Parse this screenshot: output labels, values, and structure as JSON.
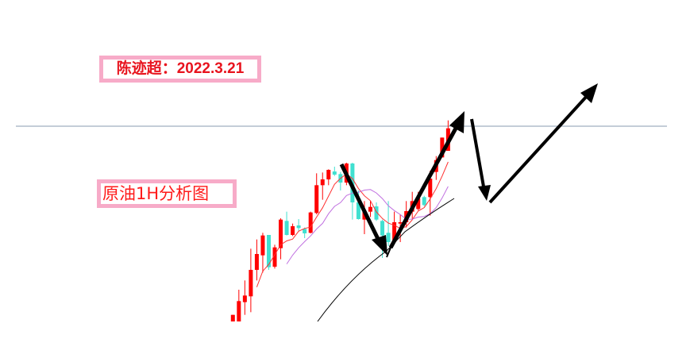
{
  "title_label": "陈迹超：2022.3.21",
  "subtitle_label": "原油1H分析图",
  "chart_data": {
    "type": "candlestick",
    "title": "",
    "xlabel": "",
    "ylabel": "",
    "grid": false,
    "colors": {
      "up": "#ff0000",
      "down": "#40e0d0",
      "ma_fast": "#ff3030",
      "ma_slow": "#c070e0",
      "trend_curve": "#000000",
      "horizontal_line": "#8a9bb0",
      "arrows": "#000000"
    },
    "moving_averages": [
      5,
      10
    ],
    "candles": [
      [
        0.5,
        3,
        0.5,
        3
      ],
      [
        0.5,
        12.5,
        0.5,
        8.2
      ],
      [
        7.8,
        16,
        3,
        10.3
      ],
      [
        10,
        28,
        4,
        20
      ],
      [
        20,
        31.5,
        16,
        26
      ],
      [
        25.5,
        34,
        19,
        33
      ],
      [
        33.2,
        33.2,
        20,
        21
      ],
      [
        21.2,
        29.5,
        20.5,
        28.5
      ],
      [
        28.2,
        39.5,
        24,
        39
      ],
      [
        38.5,
        42,
        33,
        33.2
      ],
      [
        33.2,
        37.5,
        32.8,
        36.5
      ],
      [
        36.8,
        39.2,
        34.5,
        35.8
      ],
      [
        35.5,
        36,
        32,
        33.8
      ],
      [
        34,
        42,
        33.8,
        41.7
      ],
      [
        41.5,
        56.5,
        41,
        52
      ],
      [
        52,
        56.8,
        46.5,
        54.2
      ],
      [
        54.2,
        58,
        52,
        57.8
      ],
      [
        57.2,
        59,
        55.5,
        56
      ],
      [
        56.2,
        57,
        50,
        53
      ],
      [
        53,
        60.5,
        52,
        60.2
      ],
      [
        60.2,
        60.5,
        39,
        45.5
      ],
      [
        45.5,
        50,
        39,
        39.2
      ],
      [
        39,
        46,
        33.5,
        42
      ],
      [
        42,
        46,
        40,
        43.8
      ],
      [
        44,
        45.5,
        38.5,
        39
      ],
      [
        38.5,
        39,
        24.5,
        33
      ],
      [
        34,
        46,
        29,
        30.5
      ],
      [
        30.5,
        42,
        30,
        38
      ],
      [
        37.5,
        41,
        30.5,
        38
      ],
      [
        38,
        46,
        36,
        42.2
      ],
      [
        42,
        49.5,
        39,
        46
      ],
      [
        43,
        49.5,
        42.5,
        47
      ],
      [
        47.5,
        48,
        44,
        44.5
      ],
      [
        47.5,
        57.5,
        40.5,
        54.5
      ],
      [
        57,
        63,
        54,
        61.5
      ],
      [
        62.5,
        70,
        62.5,
        70
      ],
      [
        65,
        76.5,
        65,
        73.5
      ]
    ],
    "candle_fields": [
      "open",
      "high",
      "low",
      "close"
    ],
    "annotations": [
      "down arrow",
      "up arrow",
      "down arrow",
      "up arrow"
    ]
  }
}
